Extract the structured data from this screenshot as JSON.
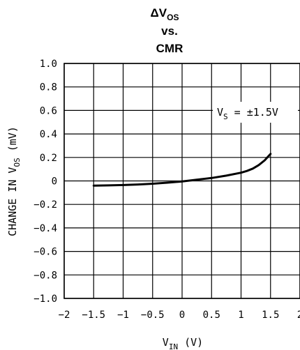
{
  "chart_data": {
    "type": "line",
    "title": {
      "line1_prefix": "ΔV",
      "line1_sub": "OS",
      "line2": "vs.",
      "line3": "CMR"
    },
    "xlabel": {
      "main": "V",
      "sub": "IN",
      "unit": "(V)"
    },
    "ylabel": {
      "pre": "CHANGE IN V",
      "sub": "OS",
      "unit": "(mV)"
    },
    "xlim": [
      -2,
      2
    ],
    "ylim": [
      -1.0,
      1.0
    ],
    "x_ticks": [
      "−2",
      "−1.5",
      "−1",
      "−0.5",
      "0",
      "0.5",
      "1",
      "1.5",
      "2"
    ],
    "y_ticks": [
      "1.0",
      "0.8",
      "0.6",
      "0.4",
      "0.2",
      "0",
      "−0.2",
      "−0.4",
      "−0.6",
      "−0.8",
      "−1.0"
    ],
    "grid": true,
    "annotation": {
      "main": "V",
      "sub": "S",
      "rest": " = ±1.5V"
    },
    "series": [
      {
        "x": [
          -1.5,
          -1.25,
          -1.0,
          -0.75,
          -0.5,
          -0.25,
          0.0,
          0.25,
          0.5,
          0.75,
          1.0,
          1.1,
          1.2,
          1.3,
          1.4,
          1.5
        ],
        "y": [
          -0.04,
          -0.038,
          -0.035,
          -0.03,
          -0.024,
          -0.015,
          -0.005,
          0.01,
          0.025,
          0.045,
          0.07,
          0.085,
          0.105,
          0.135,
          0.175,
          0.23
        ]
      }
    ]
  }
}
